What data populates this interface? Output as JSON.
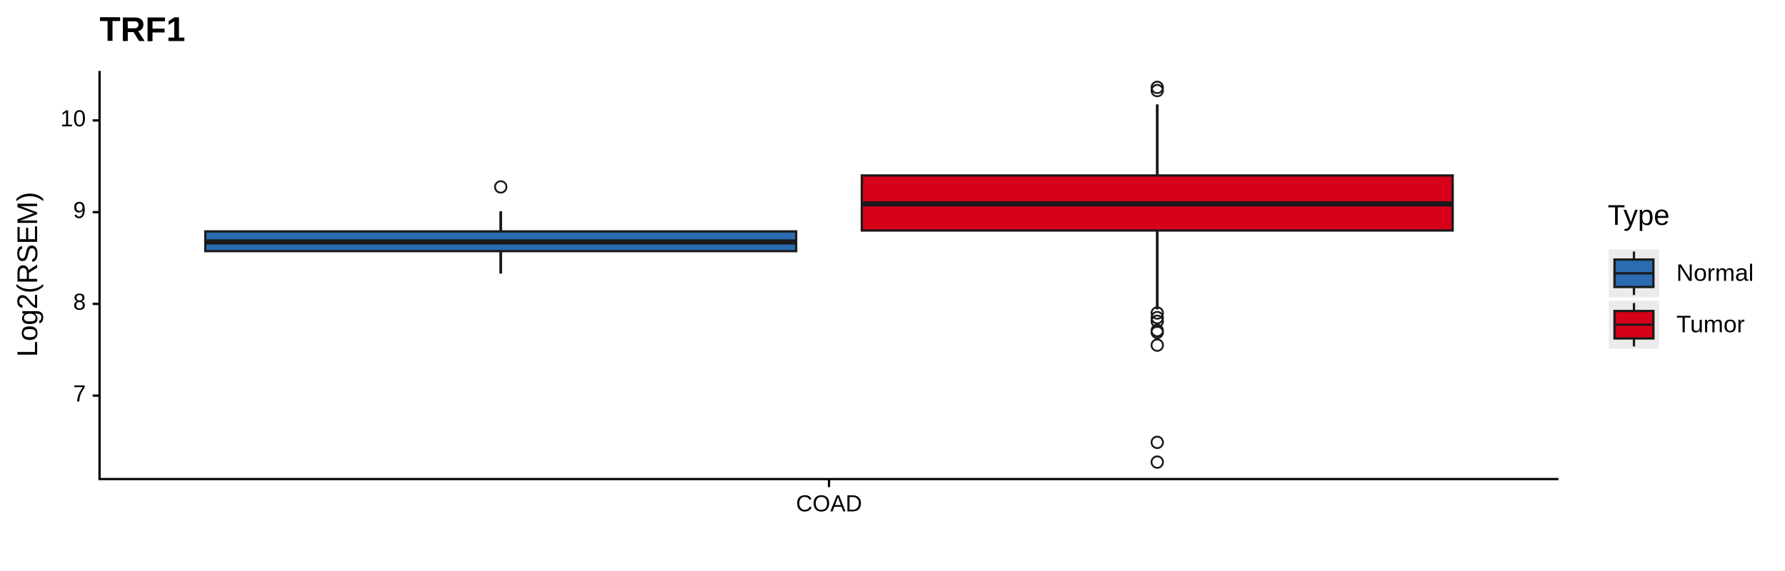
{
  "chart_data": {
    "type": "box",
    "title": "TRF1",
    "y_label": "Log2(RSEM)",
    "categories": [
      "COAD"
    ],
    "ylim": [
      6.09,
      10.54
    ],
    "yticks": [
      7,
      8,
      9,
      10
    ],
    "legend_title": "Type",
    "legend_position": "right",
    "series": [
      {
        "name": "Normal",
        "color": "#2b6cb0",
        "box": {
          "whisker_low": 8.33,
          "q1": 8.575,
          "median": 8.675,
          "q3": 8.79,
          "whisker_high": 9.01
        },
        "outliers": [
          9.275
        ]
      },
      {
        "name": "Tumor",
        "color": "#d7001a",
        "box": {
          "whisker_low": 7.94,
          "q1": 8.8,
          "median": 9.09,
          "q3": 9.4,
          "whisker_high": 10.175
        },
        "outliers": [
          10.36,
          10.325,
          7.9,
          7.85,
          7.81,
          7.71,
          7.69,
          7.55,
          6.49,
          6.275
        ]
      }
    ]
  }
}
